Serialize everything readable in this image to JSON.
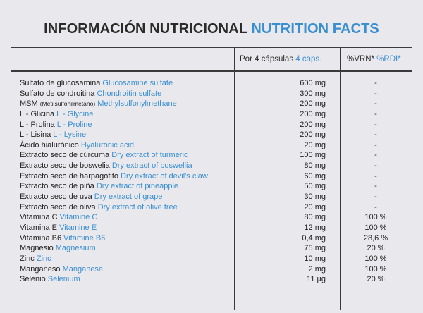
{
  "title": {
    "es": "INFORMACIÓN NUTRICIONAL",
    "en": "NUTRITION FACTS"
  },
  "header": {
    "per_es": "Por 4 cápsulas",
    "per_en": "4 caps.",
    "vrn_es": "%VRN*",
    "vrn_en": "%RDI*"
  },
  "rows": [
    {
      "es": "Sulfato de glucosamina",
      "en": "Glucosamine sulfate",
      "amount": "600 mg",
      "vrn": "-"
    },
    {
      "es": "Sulfato de condroitina",
      "en": "Chondroitin sulfate",
      "amount": "300 mg",
      "vrn": "-"
    },
    {
      "es": "MSM",
      "es_small": "(Metilsulfonilmetano)",
      "en": "Methylsulfonylmethane",
      "amount": "200 mg",
      "vrn": "-"
    },
    {
      "es": "L - Glicina",
      "en": "L - Glycine",
      "amount": "200 mg",
      "vrn": "-"
    },
    {
      "es": "L - Prolina",
      "en": "L - Proline",
      "amount": "200 mg",
      "vrn": "-"
    },
    {
      "es": "L - Lisina",
      "en": "L - Lysine",
      "amount": "200 mg",
      "vrn": "-"
    },
    {
      "es": "Ácido hialurónico",
      "en": "Hyaluronic acid",
      "amount": "20 mg",
      "vrn": "-"
    },
    {
      "es": "Extracto seco de cúrcuma",
      "en": "Dry extract of turmeric",
      "amount": "100 mg",
      "vrn": "-"
    },
    {
      "es": "Extracto seco de boswelia",
      "en": "Dry extract of boswellia",
      "amount": "80 mg",
      "vrn": "-"
    },
    {
      "es": "Extracto seco de harpagofito",
      "en": "Dry extract of devil's claw",
      "amount": "60 mg",
      "vrn": "-"
    },
    {
      "es": "Extracto seco de piña",
      "en": "Dry extract of pineapple",
      "amount": "50 mg",
      "vrn": "-"
    },
    {
      "es": "Extracto seco de uva",
      "en": "Dry extract of grape",
      "amount": "30 mg",
      "vrn": "-"
    },
    {
      "es": "Extracto seco de oliva",
      "en": "Dry extract of olive tree",
      "amount": "20 mg",
      "vrn": "-"
    },
    {
      "es": "Vitamina C",
      "en": "Vitamine C",
      "amount": "80 mg",
      "vrn": "100 %"
    },
    {
      "es": "Vitamina E",
      "en": "Vitamine E",
      "amount": "12 mg",
      "vrn": "100 %"
    },
    {
      "es": "Vitamina B6",
      "en": "Vitamine B6",
      "amount": "0,4 mg",
      "vrn": "28,6 %"
    },
    {
      "es": "Magnesio",
      "en": "Magnesium",
      "amount": "75 mg",
      "vrn": "20 %"
    },
    {
      "es": "Zinc",
      "en": "Zinc",
      "amount": "10 mg",
      "vrn": "100 %"
    },
    {
      "es": "Manganeso",
      "en": "Manganese",
      "amount": "2 mg",
      "vrn": "100 %"
    },
    {
      "es": "Selenio",
      "en": "Selenium",
      "amount": "11 µg",
      "vrn": "20 %"
    }
  ],
  "colors": {
    "background": "#e9e8ed",
    "text": "#232323",
    "accent": "#3a8fd0",
    "rule": "#3a3a3a"
  }
}
